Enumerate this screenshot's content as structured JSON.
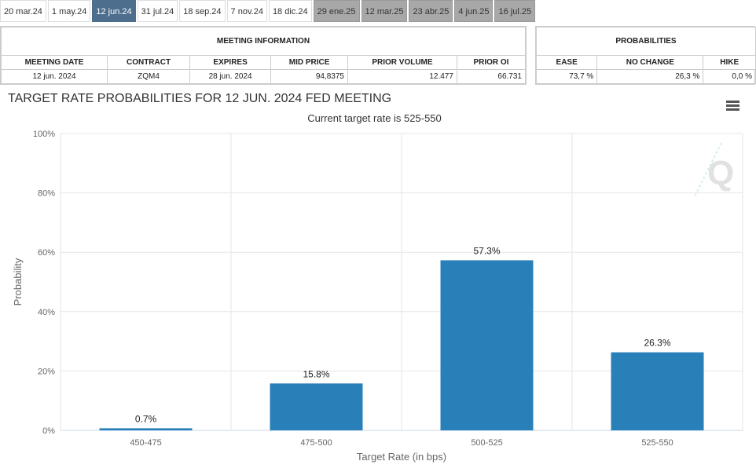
{
  "tabs": [
    {
      "label": "20 mar.24",
      "state": "past"
    },
    {
      "label": "1 may.24",
      "state": "past"
    },
    {
      "label": "12 jun.24",
      "state": "active"
    },
    {
      "label": "31 jul.24",
      "state": "normal"
    },
    {
      "label": "18 sep.24",
      "state": "normal"
    },
    {
      "label": "7 nov.24",
      "state": "normal"
    },
    {
      "label": "18 dic.24",
      "state": "normal"
    },
    {
      "label": "29 ene.25",
      "state": "future"
    },
    {
      "label": "12 mar.25",
      "state": "future"
    },
    {
      "label": "23 abr.25",
      "state": "future"
    },
    {
      "label": "4 jun.25",
      "state": "future"
    },
    {
      "label": "16 jul.25",
      "state": "future"
    }
  ],
  "meeting": {
    "caption": "MEETING INFORMATION",
    "headers": [
      "MEETING DATE",
      "CONTRACT",
      "EXPIRES",
      "MID PRICE",
      "PRIOR VOLUME",
      "PRIOR OI"
    ],
    "values": [
      "12 jun. 2024",
      "ZQM4",
      "28 jun. 2024",
      "94,8375",
      "12.477",
      "66.731"
    ]
  },
  "probabilities": {
    "caption": "PROBABILITIES",
    "headers": [
      "EASE",
      "NO CHANGE",
      "HIKE"
    ],
    "values": [
      "73,7 %",
      "26,3 %",
      "0,0 %"
    ]
  },
  "chart_data": {
    "type": "bar",
    "title": "TARGET RATE PROBABILITIES FOR 12 JUN. 2024 FED MEETING",
    "subtitle": "Current target rate is 525-550",
    "xlabel": "Target Rate (in bps)",
    "ylabel": "Probability",
    "categories": [
      "450-475",
      "475-500",
      "500-525",
      "525-550"
    ],
    "values": [
      0.7,
      15.8,
      57.3,
      26.3
    ],
    "data_labels": [
      "0.7%",
      "15.8%",
      "57.3%",
      "26.3%"
    ],
    "ylim": [
      0,
      100
    ],
    "yticks": [
      "0%",
      "20%",
      "40%",
      "60%",
      "80%",
      "100%"
    ],
    "grid": true,
    "color": "#2980b9"
  }
}
